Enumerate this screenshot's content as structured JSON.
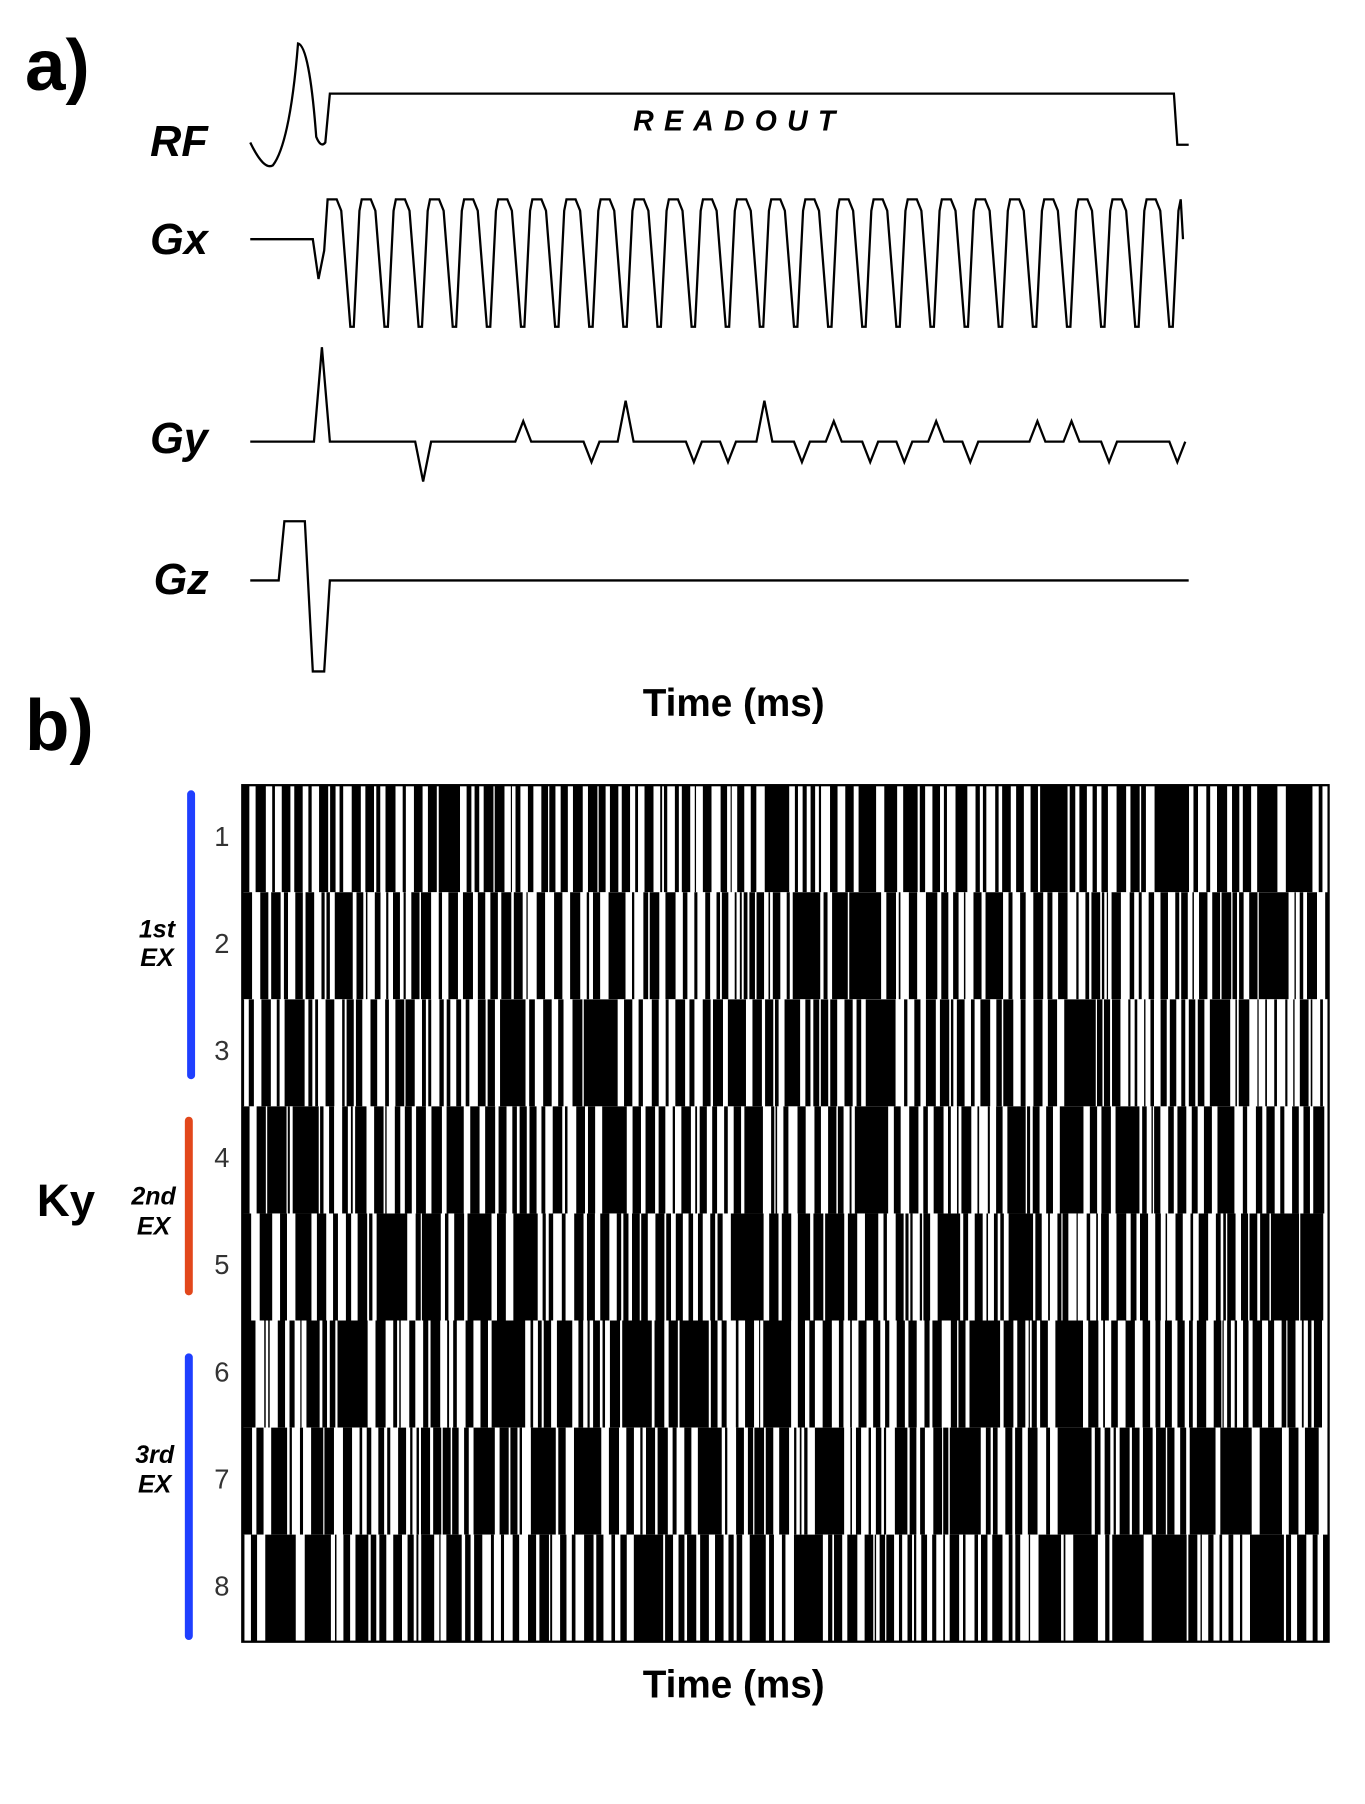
{
  "panel_a": {
    "label": "a)",
    "signals": [
      {
        "label": "RF"
      },
      {
        "label": "Gx"
      },
      {
        "label": "Gy"
      },
      {
        "label": "Gz"
      }
    ],
    "readout": "READOUT",
    "x_axis": "Time (ms)"
  },
  "panel_b": {
    "label": "b)",
    "y_axis": "Ky",
    "rows": [
      "1",
      "2",
      "3",
      "4",
      "5",
      "6",
      "7",
      "8"
    ],
    "excitations": [
      {
        "line1": "1st",
        "line2": "EX"
      },
      {
        "line1": "2nd",
        "line2": "EX"
      },
      {
        "line1": "3rd",
        "line2": "EX"
      }
    ],
    "x_axis": "Time (ms)"
  }
}
